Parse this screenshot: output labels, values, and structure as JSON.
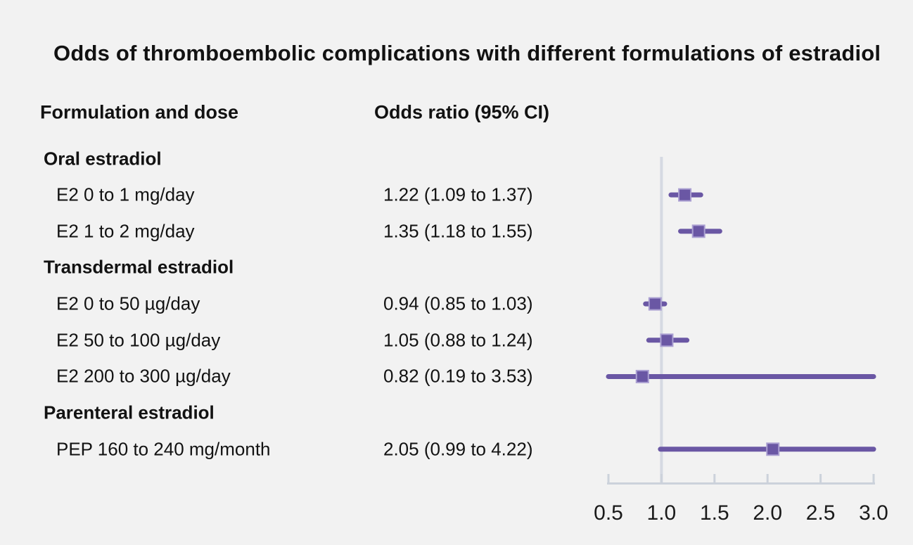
{
  "title": "Odds of thromboembolic complications with different formulations of estradiol",
  "columns": {
    "formulation": "Formulation and dose",
    "odds_ratio": "Odds ratio (95% CI)"
  },
  "colors": {
    "background": "#f2f2f2",
    "text": "#121212",
    "marker": "#6a57a4",
    "marker_edge": "#aba0d2",
    "reference_line": "#d5d9e2",
    "axis": "#ccd2db",
    "tick_label": "#1a1a1a"
  },
  "chart_data": {
    "type": "scatter",
    "subtype": "forest-plot",
    "title": "Odds of thromboembolic complications with different formulations of estradiol",
    "xlabel": "",
    "ylabel": "",
    "x_axis": {
      "min": 0.5,
      "max": 3.0,
      "tick_values": [
        0.5,
        1.0,
        1.5,
        2.0,
        2.5,
        3.0
      ],
      "tick_labels": [
        "0.5",
        "1.0",
        "1.5",
        "2.0",
        "2.5",
        "3.0"
      ],
      "reference_line_at": 1.0,
      "grid": false
    },
    "rows": [
      {
        "kind": "group",
        "label": "Oral estradiol"
      },
      {
        "kind": "item",
        "label": "E2 0 to 1 mg/day",
        "or_text": "1.22 (1.09 to 1.37)",
        "or": 1.22,
        "ci_low": 1.09,
        "ci_high": 1.37
      },
      {
        "kind": "item",
        "label": "E2 1 to 2 mg/day",
        "or_text": "1.35 (1.18 to 1.55)",
        "or": 1.35,
        "ci_low": 1.18,
        "ci_high": 1.55
      },
      {
        "kind": "group",
        "label": "Transdermal estradiol"
      },
      {
        "kind": "item",
        "label": "E2 0 to 50 µg/day",
        "or_text": "0.94 (0.85 to 1.03)",
        "or": 0.94,
        "ci_low": 0.85,
        "ci_high": 1.03
      },
      {
        "kind": "item",
        "label": "E2 50 to 100 µg/day",
        "or_text": "1.05 (0.88 to 1.24)",
        "or": 1.05,
        "ci_low": 0.88,
        "ci_high": 1.24
      },
      {
        "kind": "item",
        "label": "E2 200 to 300 µg/day",
        "or_text": "0.82 (0.19 to 3.53)",
        "or": 0.82,
        "ci_low": 0.19,
        "ci_high": 3.53
      },
      {
        "kind": "group",
        "label": "Parenteral estradiol"
      },
      {
        "kind": "item",
        "label": "PEP 160 to 240 mg/month",
        "or_text": "2.05 (0.99 to 4.22)",
        "or": 2.05,
        "ci_low": 0.99,
        "ci_high": 4.22
      }
    ]
  }
}
